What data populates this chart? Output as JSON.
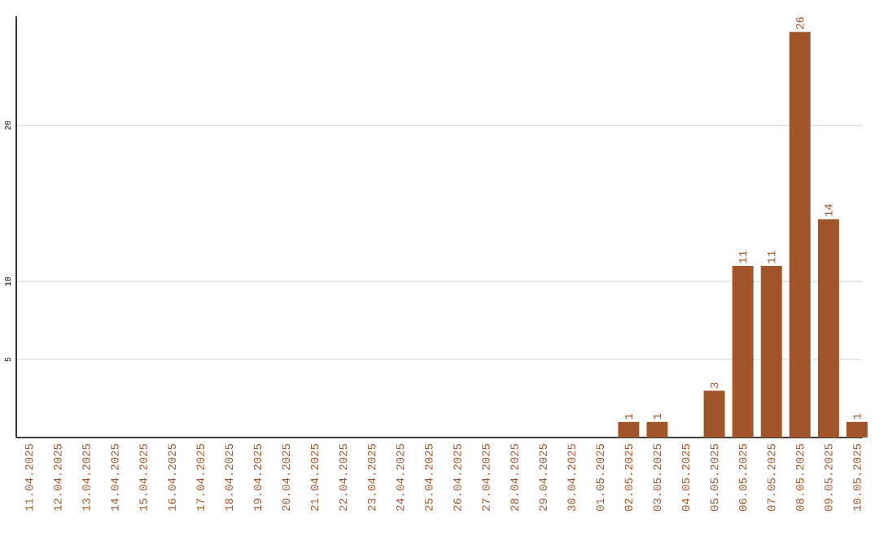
{
  "chart_data": {
    "type": "bar",
    "categories": [
      "11.04.2025",
      "12.04.2025",
      "13.04.2025",
      "14.04.2025",
      "15.04.2025",
      "16.04.2025",
      "17.04.2025",
      "18.04.2025",
      "19.04.2025",
      "20.04.2025",
      "21.04.2025",
      "22.04.2025",
      "23.04.2025",
      "24.04.2025",
      "25.04.2025",
      "26.04.2025",
      "27.04.2025",
      "28.04.2025",
      "29.04.2025",
      "30.04.2025",
      "01.05.2025",
      "02.05.2025",
      "03.05.2025",
      "04.05.2025",
      "05.05.2025",
      "06.05.2025",
      "07.05.2025",
      "08.05.2025",
      "09.05.2025",
      "10.05.2025"
    ],
    "values": [
      0,
      0,
      0,
      0,
      0,
      0,
      0,
      0,
      0,
      0,
      0,
      0,
      0,
      0,
      0,
      0,
      0,
      0,
      0,
      0,
      0,
      1,
      1,
      0,
      3,
      11,
      11,
      26,
      14,
      1
    ],
    "value_labels": [
      null,
      null,
      null,
      null,
      null,
      null,
      null,
      null,
      null,
      null,
      null,
      null,
      null,
      null,
      null,
      null,
      null,
      null,
      null,
      null,
      null,
      "1",
      "1",
      null,
      "3",
      "11",
      "11",
      "26",
      "14",
      "1"
    ],
    "color": "#a0562a",
    "ylim": [
      0,
      27
    ],
    "yticks": [
      5,
      10,
      20
    ],
    "grid": "y"
  }
}
